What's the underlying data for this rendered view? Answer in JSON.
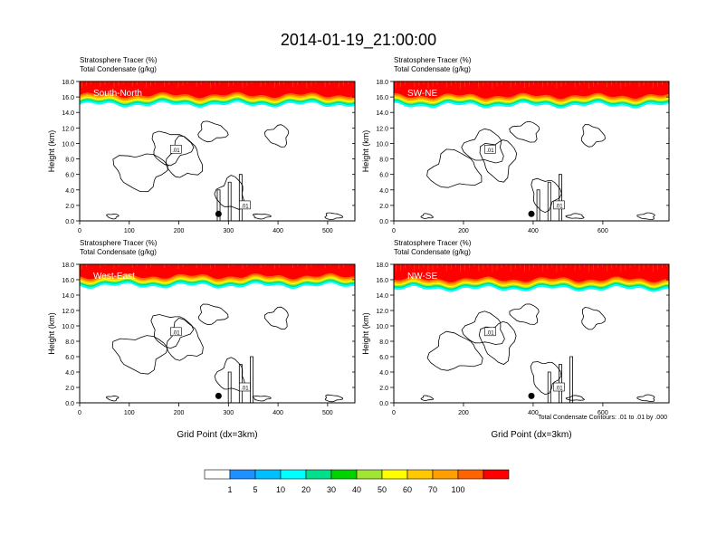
{
  "figure": {
    "title": "2014-01-19_21:00:00",
    "contour_note": "Total Condensate Contours: .01 to .01 by .000"
  },
  "colorbar": {
    "levels": [
      "1",
      "5",
      "10",
      "20",
      "30",
      "40",
      "50",
      "60",
      "70",
      "100"
    ],
    "colors": [
      "#ffffff",
      "#1e90ff",
      "#00bfff",
      "#00ffff",
      "#00e08a",
      "#00d400",
      "#a0e632",
      "#ffff00",
      "#ffc800",
      "#ffa000",
      "#ff6400",
      "#ff0000"
    ]
  },
  "chart_data": [
    {
      "type": "heatmap",
      "panel_label": "South-North",
      "line1": "Stratosphere Tracer   (%)",
      "line2": "Total Condensate   (g/kg)",
      "ylabel": "Height (km)",
      "xlabel": "",
      "xlim": [
        0,
        555
      ],
      "ylim": [
        0,
        18
      ],
      "xticks": [
        0,
        100,
        200,
        300,
        400,
        500
      ],
      "yticks": [
        "0.0",
        "2.0",
        "4.0",
        "6.0",
        "8.0",
        "10.0",
        "12.0",
        "14.0",
        "16.0",
        "18.0"
      ],
      "tropopause_km": 15.0,
      "marker_x": 280,
      "contour_label": ".01"
    },
    {
      "type": "heatmap",
      "panel_label": "SW-NE",
      "line1": "Stratosphere Tracer   (%)",
      "line2": "Total Condensate   (g/kg)",
      "ylabel": "Height (km)",
      "xlabel": "",
      "xlim": [
        0,
        790
      ],
      "ylim": [
        0,
        18
      ],
      "xticks": [
        0,
        200,
        400,
        600
      ],
      "yticks": [
        "0.0",
        "2.0",
        "4.0",
        "6.0",
        "8.0",
        "10.0",
        "12.0",
        "14.0",
        "16.0",
        "18.0"
      ],
      "tropopause_km": 14.9,
      "marker_x": 395,
      "contour_label": ".01"
    },
    {
      "type": "heatmap",
      "panel_label": "West-East",
      "line1": "Stratosphere Tracer   (%)",
      "line2": "Total Condensate   (g/kg)",
      "ylabel": "Height (km)",
      "xlabel": "Grid Point (dx=3km)",
      "xlim": [
        0,
        555
      ],
      "ylim": [
        0,
        18
      ],
      "xticks": [
        0,
        100,
        200,
        300,
        400,
        500
      ],
      "yticks": [
        "0.0",
        "2.0",
        "4.0",
        "6.0",
        "8.0",
        "10.0",
        "12.0",
        "14.0",
        "16.0",
        "18.0"
      ],
      "tropopause_km": 15.2,
      "marker_x": 280,
      "contour_label": ".01"
    },
    {
      "type": "heatmap",
      "panel_label": "NW-SE",
      "line1": "Stratosphere Tracer   (%)",
      "line2": "Total Condensate   (g/kg)",
      "ylabel": "Height (km)",
      "xlabel": "Grid Point (dx=3km)",
      "xlim": [
        0,
        790
      ],
      "ylim": [
        0,
        18
      ],
      "xticks": [
        0,
        200,
        400,
        600
      ],
      "yticks": [
        "0.0",
        "2.0",
        "4.0",
        "6.0",
        "8.0",
        "10.0",
        "12.0",
        "14.0",
        "16.0",
        "18.0"
      ],
      "tropopause_km": 14.8,
      "marker_x": 395,
      "contour_label": ".01"
    }
  ]
}
